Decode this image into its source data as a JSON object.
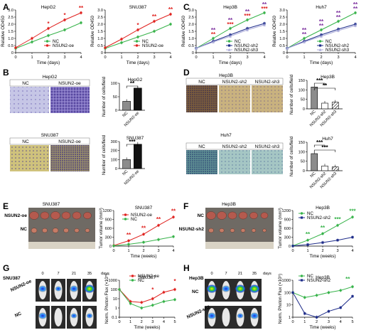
{
  "figure": {
    "panels": [
      "A",
      "B",
      "C",
      "D",
      "E",
      "F",
      "G",
      "H"
    ],
    "colors": {
      "nc": "#37b34a",
      "oe": "#e0221f",
      "sh2": "#1f2d8a",
      "sh3": "#a9a9d9",
      "star_red": "#e0221f",
      "star_purple": "#7b2f9e",
      "bar_nc": "#8c8c8c",
      "bar_oe": "#111111"
    }
  },
  "growth": {
    "xlabel": "Time (days)",
    "ylabel": "Relative OD450",
    "xticks": [
      "0",
      "1",
      "2",
      "3",
      "4"
    ],
    "yticks": [
      "0",
      "0.5",
      "1.0",
      "1.5",
      "2.0",
      "2.5",
      "3.0"
    ],
    "hepg2": {
      "title": "HepG2",
      "legend": [
        "NC",
        "NSUN2-oe"
      ],
      "stars": [
        "*",
        "*",
        "**"
      ]
    },
    "snu387": {
      "title": "SNU387",
      "legend": [
        "NC",
        "NSUN2-oe"
      ],
      "stars": [
        "*",
        "**",
        "**"
      ]
    },
    "hep3b": {
      "title": "Hep3B",
      "legend": [
        "NC",
        "NSUN2-sh2",
        "NSUN2-sh3"
      ],
      "stars_top": [
        "**",
        "**",
        "**",
        "**"
      ],
      "stars_bot": [
        "**",
        "***",
        "***",
        "***"
      ]
    },
    "huh7": {
      "title": "Huh7",
      "legend": [
        "NC",
        "NSUN2-sh2",
        "NSUN2-sh3"
      ],
      "stars_top": [
        "**",
        "**",
        "**",
        "**"
      ],
      "stars_bot": [
        "**",
        "**",
        "**",
        "**"
      ]
    }
  },
  "chart_data": [
    {
      "type": "line",
      "title": "HepG2",
      "xlabel": "Time (days)",
      "ylabel": "Relative OD450",
      "x": [
        0,
        1,
        2,
        3,
        4
      ],
      "ylim": [
        0,
        3.0
      ],
      "series": [
        {
          "name": "NC",
          "values": [
            0.3,
            0.75,
            1.2,
            1.6,
            2.1
          ]
        },
        {
          "name": "NSUN2-oe",
          "values": [
            0.35,
            1.0,
            1.7,
            2.3,
            2.8
          ]
        }
      ]
    },
    {
      "type": "line",
      "title": "SNU387",
      "xlabel": "Time (days)",
      "ylabel": "Relative OD450",
      "x": [
        0,
        1,
        2,
        3,
        4
      ],
      "ylim": [
        0,
        3.0
      ],
      "series": [
        {
          "name": "NC",
          "values": [
            0.3,
            0.7,
            1.1,
            1.5,
            2.0
          ]
        },
        {
          "name": "NSUN2-oe",
          "values": [
            0.35,
            0.95,
            1.6,
            2.2,
            2.7
          ]
        }
      ]
    },
    {
      "type": "line",
      "title": "Hep3B",
      "xlabel": "Time (days)",
      "ylabel": "Relative OD450",
      "x": [
        0,
        1,
        2,
        3,
        4
      ],
      "ylim": [
        0,
        3.0
      ],
      "series": [
        {
          "name": "NC",
          "values": [
            0.3,
            1.0,
            1.7,
            2.3,
            2.8
          ]
        },
        {
          "name": "NSUN2-sh2",
          "values": [
            0.3,
            0.8,
            1.25,
            1.7,
            2.05
          ]
        },
        {
          "name": "NSUN2-sh3",
          "values": [
            0.3,
            0.75,
            1.15,
            1.6,
            1.95
          ]
        }
      ]
    },
    {
      "type": "line",
      "title": "Huh7",
      "xlabel": "Time (days)",
      "ylabel": "Relative OD450",
      "x": [
        0,
        1,
        2,
        3,
        4
      ],
      "ylim": [
        0,
        3.0
      ],
      "series": [
        {
          "name": "NC",
          "values": [
            0.3,
            1.0,
            1.6,
            2.2,
            2.8
          ]
        },
        {
          "name": "NSUN2-sh2",
          "values": [
            0.3,
            0.8,
            1.25,
            1.65,
            2.0
          ]
        },
        {
          "name": "NSUN2-sh3",
          "values": [
            0.3,
            0.75,
            1.15,
            1.55,
            1.9
          ]
        }
      ]
    },
    {
      "type": "bar",
      "title": "HepG2",
      "ylabel": "Number of cells/field",
      "categories": [
        "NC",
        "NSUN2-oe"
      ],
      "values": [
        33,
        82
      ],
      "ylim": [
        0,
        100
      ],
      "stars": "**"
    },
    {
      "type": "bar",
      "title": "SNU387",
      "ylabel": "Number of cells/field",
      "categories": [
        "NC",
        "NSUN2-oe"
      ],
      "values": [
        100,
        270
      ],
      "ylim": [
        0,
        300
      ],
      "stars": "***"
    },
    {
      "type": "bar",
      "title": "Hep3B",
      "ylabel": "Number of cells/field",
      "categories": [
        "NC",
        "NSUN2-sh2",
        "NSUN2-sh3"
      ],
      "values": [
        115,
        30,
        35
      ],
      "ylim": [
        0,
        150
      ],
      "stars": [
        "***",
        "**"
      ]
    },
    {
      "type": "bar",
      "title": "Huh7",
      "ylabel": "Number of cells/field",
      "categories": [
        "NC",
        "NSUN2-sh2",
        "NSUN2-sh3"
      ],
      "values": [
        90,
        25,
        20
      ],
      "ylim": [
        0,
        150
      ],
      "stars": [
        "***",
        "***"
      ]
    },
    {
      "type": "line",
      "title": "SNU387",
      "xlabel": "Time (weeks)",
      "ylabel": "Tumor volume (mm³)",
      "x": [
        0,
        1,
        2,
        3,
        4
      ],
      "ylim": [
        0,
        1200
      ],
      "series": [
        {
          "name": "NSUN2-oe",
          "values": [
            20,
            180,
            400,
            700,
            980
          ]
        },
        {
          "name": "NC",
          "values": [
            10,
            60,
            130,
            220,
            320
          ]
        }
      ],
      "stars": [
        "**",
        "**",
        "**",
        "**"
      ]
    },
    {
      "type": "line",
      "title": "Hep3B",
      "xlabel": "Time (weeks)",
      "ylabel": "Tumor volume (mm³)",
      "x": [
        0,
        1,
        2,
        3,
        4
      ],
      "ylim": [
        0,
        1200
      ],
      "series": [
        {
          "name": "NC",
          "values": [
            10,
            200,
            420,
            700,
            980
          ]
        },
        {
          "name": "NSUN2-sh2",
          "values": [
            5,
            50,
            120,
            200,
            300
          ]
        }
      ],
      "stars": [
        "**",
        "**",
        "***",
        "***"
      ]
    },
    {
      "type": "line",
      "title": "SNU387",
      "xlabel": "Time (weeks)",
      "ylabel": "Norm. Photon Flux (×10⁵)",
      "x": [
        0,
        1,
        2,
        3,
        4,
        5
      ],
      "ylim": [
        0.1,
        1000
      ],
      "yscale": "log",
      "series": [
        {
          "name": "NSUN2-oe",
          "values": [
            100,
            5,
            4,
            10,
            50,
            100
          ]
        },
        {
          "name": "NC",
          "values": [
            100,
            3,
            1,
            2,
            5,
            8
          ]
        }
      ],
      "stars": [
        "*",
        "*"
      ]
    },
    {
      "type": "line",
      "title": "Hep3B",
      "xlabel": "Time (weeks)",
      "ylabel": "Norm. Photon Flux (×10⁵)",
      "x": [
        0,
        1,
        2,
        3,
        4,
        5
      ],
      "ylim": [
        1,
        1000
      ],
      "yscale": "log",
      "series": [
        {
          "name": "NC",
          "values": [
            100,
            40,
            60,
            100,
            150,
            300
          ]
        },
        {
          "name": "NSUN2-sh2",
          "values": [
            100,
            2,
            1,
            3,
            6,
            50
          ]
        }
      ],
      "stars": [
        "**"
      ]
    }
  ],
  "panel_b": {
    "top": {
      "cell": "HepG2",
      "labels": [
        "NC",
        "NSUN2-oe"
      ]
    },
    "bottom": {
      "cell": "SNU387",
      "labels": [
        "NC",
        "NSUN2-oe"
      ]
    }
  },
  "panel_d": {
    "top": {
      "cell": "Hep3B",
      "labels": [
        "NC",
        "NSUN2-sh2",
        "NSUN2-sh3"
      ]
    },
    "bottom": {
      "cell": "Huh7",
      "labels": [
        "NC",
        "NSUN2-sh2",
        "NSUN2-sh3"
      ]
    }
  },
  "panel_e": {
    "cell": "SNU387",
    "row_labels": [
      "NSUN2-oe",
      "NC"
    ]
  },
  "panel_f": {
    "cell": "Hep3B",
    "row_labels": [
      "NC",
      "NSUN2-sh2"
    ]
  },
  "panel_g": {
    "cell": "SNU387",
    "days": [
      "0",
      "7",
      "21",
      "35"
    ],
    "days_unit": "days",
    "row_labels": [
      "NSUN2-oe",
      "NC"
    ]
  },
  "panel_h": {
    "cell": "Hep3B",
    "days": [
      "0",
      "7",
      "21",
      "35"
    ],
    "days_unit": "days",
    "row_labels": [
      "NC",
      "NSUN2-sh2"
    ]
  },
  "bar_yaxis": "Number of cells/field",
  "tumor_yaxis": "Tumor volume (mm³)",
  "flux_yaxis": "Norm. Photon Flux (×10⁵)",
  "weeks_label": "Time (weeks)"
}
